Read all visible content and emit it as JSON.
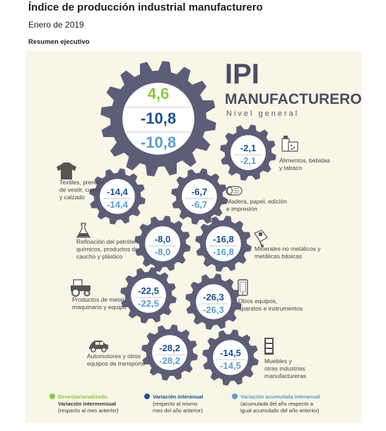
{
  "header": {
    "title": "Índice de producción industrial manufacturero",
    "subtitle": "Enero de 2019",
    "section": "Resumen ejecutivo"
  },
  "ipi": {
    "line1": "IPI",
    "line2": "MANUFACTURERO",
    "line3": "Nivel general"
  },
  "colors": {
    "gear": "#5e5d77",
    "panel": "#f8f6e6",
    "green": "#8cc63e",
    "dark_blue": "#1b4f94",
    "light_blue": "#5a9ec8"
  },
  "chart_data": {
    "type": "table",
    "general": {
      "desestacionalizado": "4,6",
      "interanual": "-10,8",
      "acumulada": "-10,8"
    },
    "sectors": [
      {
        "label": [
          "Alimentos, bebidas",
          "y tabaco"
        ],
        "icon": "food-icon",
        "interanual": "-2,1",
        "acumulada": "-2,1"
      },
      {
        "label": [
          "Textiles, prendas",
          "de vestir, cuero",
          "y calzado"
        ],
        "icon": "shirt-icon",
        "interanual": "-14,4",
        "acumulada": "-14,4"
      },
      {
        "label": [
          "Madera, papel, edición",
          "e impresión"
        ],
        "icon": "wood-icon",
        "interanual": "-6,7",
        "acumulada": "-6,7"
      },
      {
        "label": [
          "Refinación del petróleo,",
          "químicos, productos de",
          "caucho y plástico"
        ],
        "icon": "flask-icon",
        "interanual": "-8,0",
        "acumulada": "-8,0"
      },
      {
        "label": [
          "Minerales no metálicos y",
          "metálicas básicas"
        ],
        "icon": "cart-icon",
        "interanual": "-16,8",
        "acumulada": "-16,8"
      },
      {
        "label": [
          "Productos de metal,",
          "maquinaria y equipo"
        ],
        "icon": "tractor-icon",
        "interanual": "-22,5",
        "acumulada": "-22,5"
      },
      {
        "label": [
          "Otros equipos,",
          "aparatos e instrumentos"
        ],
        "icon": "phone-icon",
        "interanual": "-26,3",
        "acumulada": "-26,3"
      },
      {
        "label": [
          "Automotores y otros",
          "equipos de transporte"
        ],
        "icon": "car-icon",
        "interanual": "-28,2",
        "acumulada": "-28,2"
      },
      {
        "label": [
          "Muebles y",
          "otras industrias",
          "manufactureras"
        ],
        "icon": "cabinet-icon",
        "interanual": "-14,5",
        "acumulada": "-14,5"
      }
    ],
    "legend": [
      {
        "title": "Desestacionalizado.",
        "lines": [
          "Variación intermensual",
          "(respecto al mes anterior)"
        ],
        "color": "#8cc63e"
      },
      {
        "title": "Variación interanual",
        "lines": [
          "(respecto al mismo",
          "mes del año anterior)"
        ],
        "color": "#1b4f94"
      },
      {
        "title": "Variación acumulada interanual",
        "lines": [
          "(acumulada del año respecto a",
          "igual acumulado del año anterior)"
        ],
        "color": "#5a9ec8"
      }
    ]
  }
}
